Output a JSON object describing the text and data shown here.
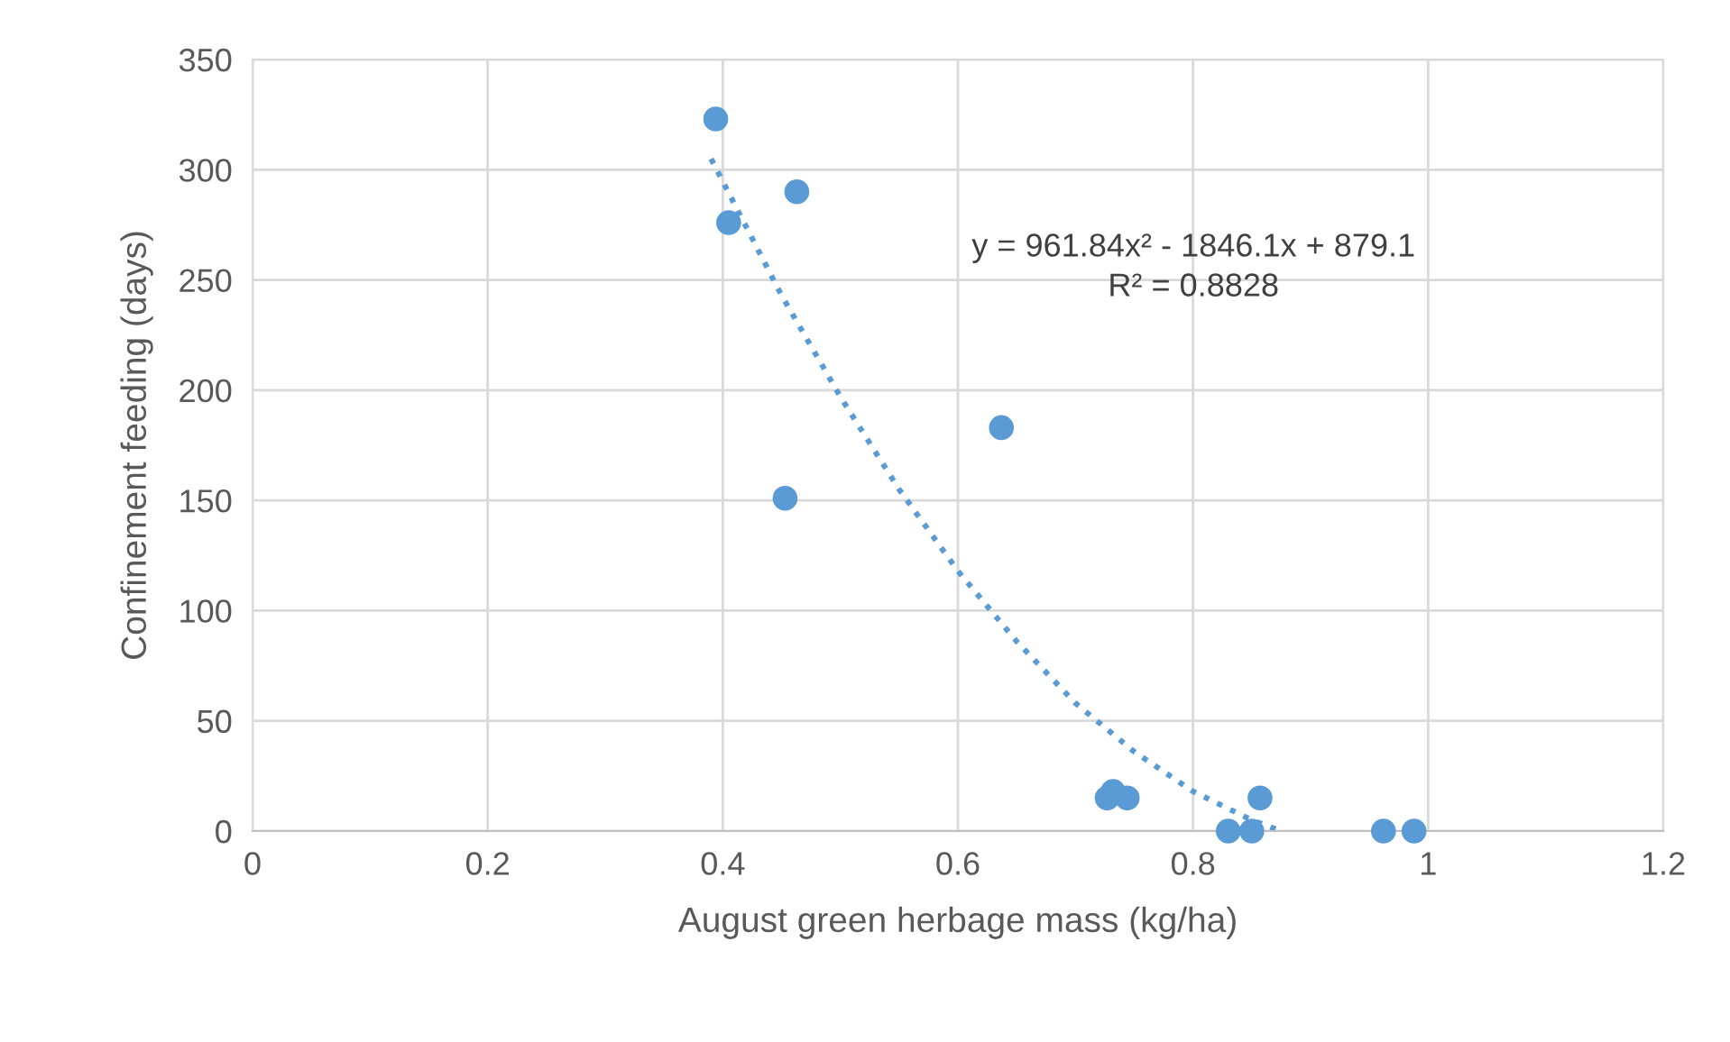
{
  "chart_data": {
    "type": "scatter",
    "xlabel": "August green herbage mass (kg/ha)",
    "ylabel": "Confinement feeding (days)",
    "xlim": [
      0,
      1.2
    ],
    "xticks": [
      0,
      0.2,
      0.4,
      0.6,
      0.8,
      1,
      1.2
    ],
    "ylim": [
      0,
      350
    ],
    "yticks": [
      0,
      50,
      100,
      150,
      200,
      250,
      300,
      350
    ],
    "grid": true,
    "marker": "circle",
    "series": [
      {
        "color": "#5b9bd5",
        "x": [
          0.394,
          0.405,
          0.463,
          0.453,
          0.637,
          0.727,
          0.732,
          0.744,
          0.83,
          0.85,
          0.857,
          0.962,
          0.988
        ],
        "values": [
          323,
          276,
          290,
          151,
          183,
          15,
          18,
          15,
          0,
          0,
          15,
          0,
          0
        ]
      },
      {
        "type": "line",
        "color": "#5b9bd5",
        "line_style": "dotted",
        "marker": "none",
        "x": [
          0.39,
          0.45,
          0.5,
          0.55,
          0.6,
          0.65,
          0.7,
          0.75,
          0.8,
          0.85,
          0.875
        ],
        "values": [
          305,
          243,
          197,
          155,
          118,
          86,
          58,
          36,
          18,
          5,
          0
        ]
      }
    ],
    "annotations": [
      "y = 961.84x² - 1846.1x + 879.1\nR² = 0.8828"
    ]
  }
}
